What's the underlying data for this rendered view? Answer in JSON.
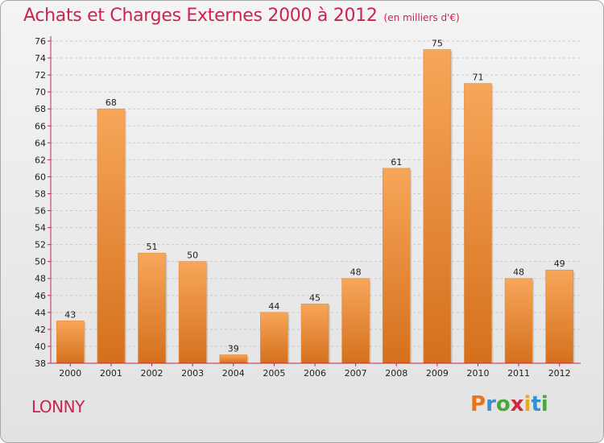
{
  "title": "Achats et Charges Externes 2000 à 2012",
  "unit": "(en milliers d'€)",
  "commune": "LONNY",
  "logo": {
    "letters": [
      "P",
      "r",
      "o",
      "x",
      "i",
      "t",
      "i"
    ],
    "colors": [
      "#e8731c",
      "#3a8fd1",
      "#4aa83a",
      "#d12a3a",
      "#e8a91c",
      "#3a8fd1",
      "#4aa83a"
    ]
  },
  "colors": {
    "bar_light": "#f7a65a",
    "bar_dark": "#d4701c",
    "accent": "#c8264e",
    "axis": "#c8264e"
  },
  "chart_data": {
    "type": "bar",
    "categories": [
      "2000",
      "2001",
      "2002",
      "2003",
      "2004",
      "2005",
      "2006",
      "2007",
      "2008",
      "2009",
      "2010",
      "2011",
      "2012"
    ],
    "values": [
      43,
      68,
      51,
      50,
      39,
      44,
      45,
      48,
      61,
      75,
      71,
      48,
      49
    ],
    "ylim": [
      38,
      76
    ],
    "yticks": [
      38,
      40,
      42,
      44,
      46,
      48,
      50,
      52,
      54,
      56,
      58,
      60,
      62,
      64,
      66,
      68,
      70,
      72,
      74,
      76
    ],
    "grid": true,
    "xlabel": "",
    "ylabel": ""
  }
}
